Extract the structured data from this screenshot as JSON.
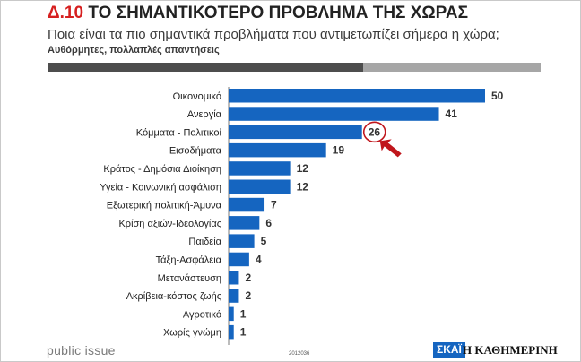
{
  "header": {
    "title_number": "Δ.10",
    "title_text": "ΤΟ ΣΗΜΑΝΤΙΚΟΤΕΡΟ ΠΡΟΒΛΗΜΑ ΤΗΣ ΧΩΡΑΣ",
    "subtitle": "Ποια είναι τα πιο σημαντικά προβλήματα που αντιμετωπίζει σήμερα η χώρα;",
    "note": "Αυθόρμητες, πολλαπλές απαντήσεις"
  },
  "footer": {
    "source": "public issue",
    "code": "2012036",
    "logo_skai": "ΣΚΑΪ",
    "logo_kathimerini": "Η ΚΑΘΗΜΕΡΙΝΗ"
  },
  "colors": {
    "bar": "#1565c0",
    "highlight": "#c0161c",
    "title_number": "#d62020"
  },
  "chart_data": {
    "type": "bar",
    "orientation": "horizontal",
    "categories": [
      "Οικονομικό",
      "Ανεργία",
      "Κόμματα - Πολιτικοί",
      "Εισοδήματα",
      "Κράτος - Δημόσια Διοίκηση",
      "Υγεία - Κοινωνική ασφάλιση",
      "Εξωτερική πολιτική-Άμυνα",
      "Κρίση αξιών-Ιδεολογίας",
      "Παιδεία",
      "Τάξη-Ασφάλεια",
      "Μετανάστευση",
      "Ακρίβεια-κόστος ζωής",
      "Αγροτικό",
      "Χωρίς γνώμη"
    ],
    "values": [
      50,
      41,
      26,
      19,
      12,
      12,
      7,
      6,
      5,
      4,
      2,
      2,
      1,
      1
    ],
    "highlighted_category": "Κόμματα - Πολιτικοί",
    "title": "ΤΟ ΣΗΜΑΝΤΙΚΟΤΕΡΟ ΠΡΟΒΛΗΜΑ ΤΗΣ ΧΩΡΑΣ",
    "xlabel": "",
    "ylabel": "",
    "xlim": [
      0,
      50
    ],
    "grid": false,
    "legend": "none"
  }
}
